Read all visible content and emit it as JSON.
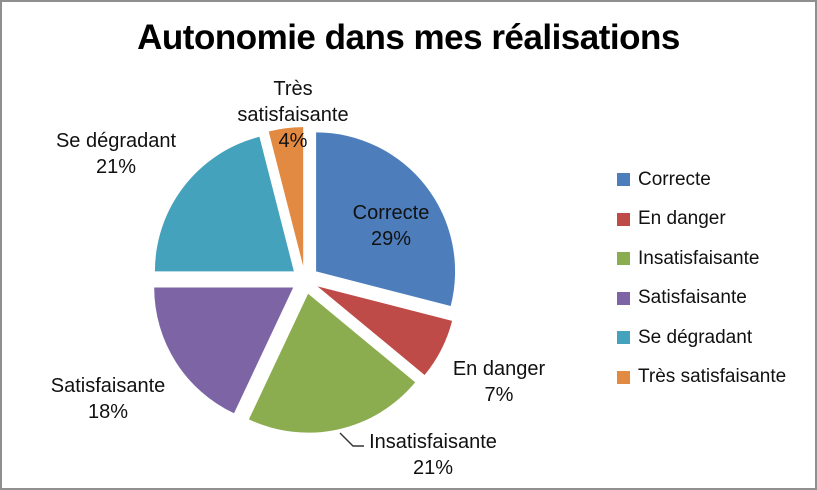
{
  "window": {
    "background": "#ffffff",
    "border_color": "#8f8f8f"
  },
  "chart_data": {
    "type": "pie",
    "title": "Autonomie dans mes réalisations",
    "categories": [
      "Correcte",
      "En danger",
      "Insatisfaisante",
      "Satisfaisante",
      "Se dégradant",
      "Très satisfaisante"
    ],
    "values": [
      29,
      7,
      21,
      18,
      21,
      4
    ],
    "value_suffix": "%",
    "colors": [
      "#4d7ebb",
      "#be4b48",
      "#8cac50",
      "#7c64a5",
      "#45a2bc",
      "#e28a42"
    ],
    "direction": "clockwise",
    "start_angle_deg": 0,
    "exploded": true,
    "legend_position": "right",
    "slice_labels": [
      {
        "text": "Correcte",
        "pct": "29%",
        "placement": "inside"
      },
      {
        "text": "En danger",
        "pct": "7%",
        "placement": "outside"
      },
      {
        "text": "Insatisfaisante",
        "pct": "21%",
        "placement": "outside",
        "leader_line": true
      },
      {
        "text": "Satisfaisante",
        "pct": "18%",
        "placement": "outside"
      },
      {
        "text": "Se dégradant",
        "pct": "21%",
        "placement": "outside"
      },
      {
        "text": "Très satisfaisante",
        "pct": "4%",
        "placement": "outside"
      }
    ]
  },
  "legend": {
    "items": [
      {
        "label": "Correcte",
        "color": "#4d7ebb"
      },
      {
        "label": "En danger",
        "color": "#be4b48"
      },
      {
        "label": "Insatisfaisante",
        "color": "#8cac50"
      },
      {
        "label": "Satisfaisante",
        "color": "#7c64a5"
      },
      {
        "label": "Se dégradant",
        "color": "#45a2bc"
      },
      {
        "label": "Très satisfaisante",
        "color": "#e28a42"
      }
    ]
  }
}
